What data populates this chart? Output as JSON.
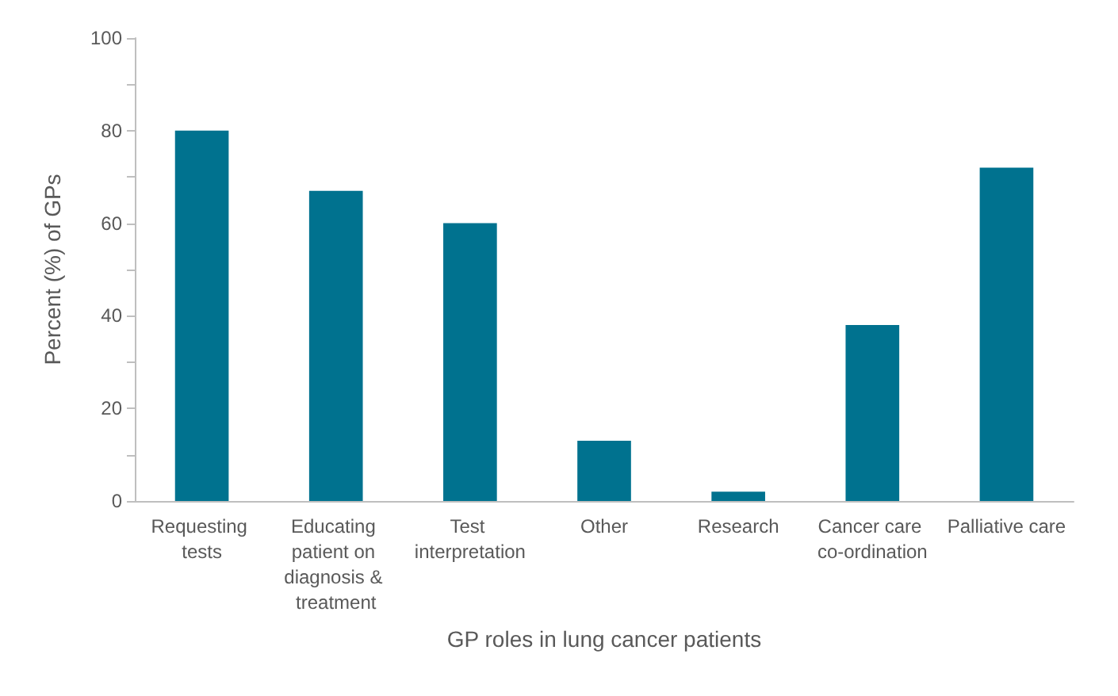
{
  "chart_data": {
    "type": "bar",
    "xlabel": "GP roles in lung cancer patients",
    "ylabel": "Percent (%) of GPs",
    "categories": [
      "Requesting tests",
      "Educating patient on diagnosis & treatment",
      "Test interpretation",
      "Other",
      "Research",
      "Cancer care co-ordination",
      "Palliative care"
    ],
    "values": [
      80,
      67,
      60,
      13,
      2,
      38,
      72
    ],
    "color": "#00728f",
    "ylim": [
      0,
      100
    ],
    "yticks": [
      0,
      {
        "value": 10,
        "label": null
      },
      20,
      {
        "value": 30,
        "label": null
      },
      40,
      {
        "value": 50,
        "label": null
      },
      60,
      {
        "value": 70,
        "label": null
      },
      80,
      {
        "value": 90,
        "label": null
      },
      100
    ],
    "grid": false
  }
}
